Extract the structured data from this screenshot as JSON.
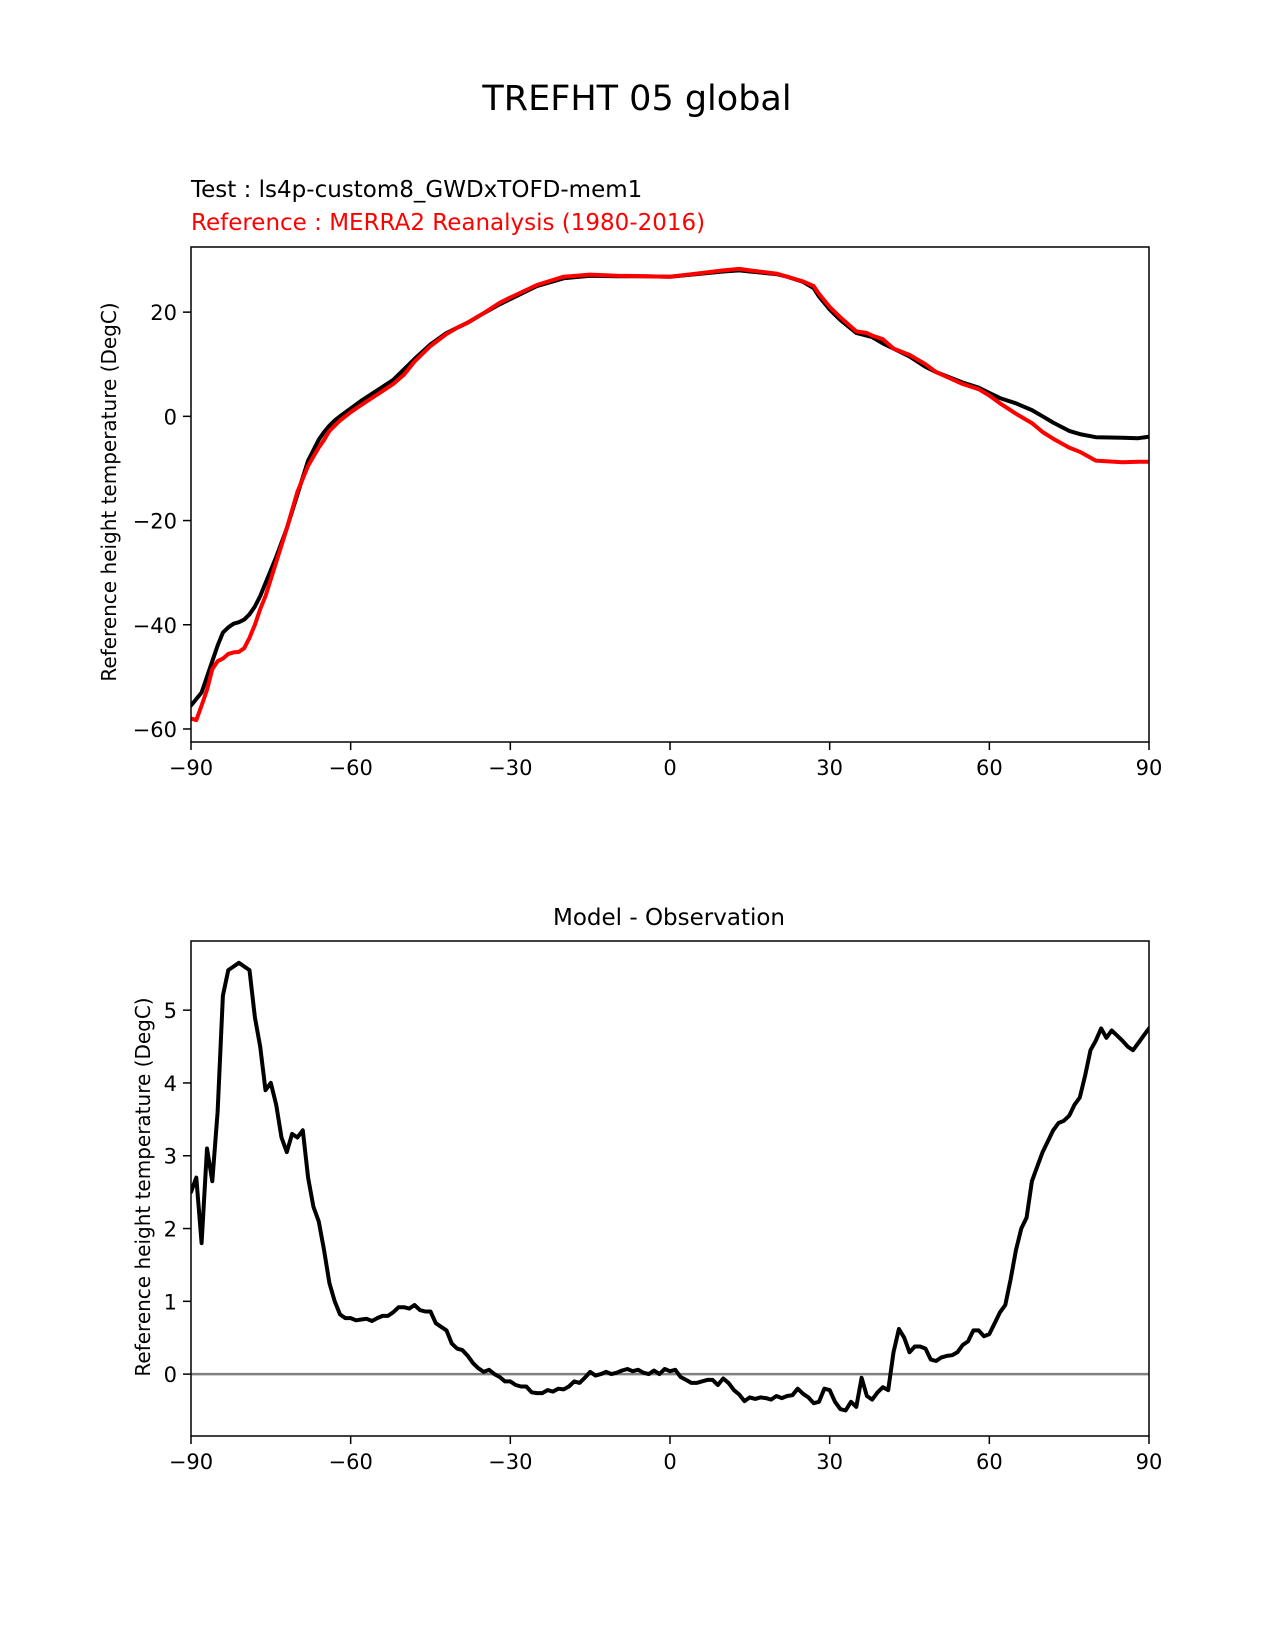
{
  "figure_title": "TREFHT 05 global",
  "chart_data": [
    {
      "type": "line",
      "title_test": "Test : ls4p-custom8_GWDxTOFD-mem1",
      "title_reference": "Reference : MERRA2 Reanalysis (1980-2016)",
      "xlabel": "",
      "ylabel": "Reference height temperature (DegC)",
      "xlim": [
        -90,
        90
      ],
      "ylim": [
        -62.5,
        32.5
      ],
      "xticks": [
        -90,
        -60,
        -30,
        0,
        30,
        60,
        90
      ],
      "xtick_labels": [
        "−90",
        "−60",
        "−30",
        "0",
        "30",
        "60",
        "90"
      ],
      "yticks": [
        20,
        0,
        -20,
        -40,
        -60
      ],
      "ytick_labels": [
        "20",
        "0",
        "−20",
        "−40",
        "−60"
      ],
      "grid": false,
      "series": [
        {
          "name": "Test : ls4p-custom8_GWDxTOFD-mem1",
          "color": "#000000",
          "x": [
            -90,
            -88,
            -86,
            -85,
            -84,
            -83,
            -82,
            -81,
            -80,
            -79,
            -78,
            -77,
            -76,
            -74,
            -72,
            -70,
            -68,
            -66,
            -65,
            -64,
            -63,
            -62,
            -60,
            -58,
            -55,
            -52,
            -50,
            -48,
            -45,
            -42,
            -40,
            -38,
            -35,
            -32,
            -30,
            -25,
            -20,
            -15,
            -10,
            -5,
            0,
            5,
            10,
            13,
            15,
            20,
            22,
            25,
            27,
            28,
            30,
            32,
            35,
            38,
            40,
            42,
            45,
            48,
            50,
            55,
            58,
            60,
            62,
            65,
            68,
            70,
            72,
            75,
            77,
            80,
            85,
            88,
            90
          ],
          "y": [
            -55.5,
            -53,
            -47,
            -44,
            -41.5,
            -40.5,
            -39.8,
            -39.5,
            -39,
            -38,
            -36.5,
            -34.5,
            -32,
            -27,
            -21.5,
            -15,
            -8.5,
            -4.5,
            -3,
            -1.8,
            -0.8,
            0,
            1.5,
            3,
            5,
            7,
            9,
            11,
            13.8,
            16,
            17,
            18,
            19.8,
            21.5,
            22.5,
            25,
            26.5,
            27,
            26.9,
            26.9,
            26.8,
            27.3,
            27.8,
            28,
            27.8,
            27.3,
            26.8,
            25.8,
            24.6,
            23,
            20.5,
            18.5,
            16,
            15.2,
            14,
            13,
            11.5,
            9.5,
            8.5,
            6.5,
            5.5,
            4.5,
            3.5,
            2.5,
            1.2,
            0,
            -1.2,
            -2.8,
            -3.4,
            -4,
            -4.1,
            -4.2,
            -3.9
          ]
        },
        {
          "name": "Reference : MERRA2 Reanalysis (1980-2016)",
          "color": "#ff0000",
          "x": [
            -90,
            -89,
            -88,
            -87,
            -86,
            -85,
            -84,
            -83,
            -82,
            -81,
            -80,
            -79,
            -78,
            -77,
            -76,
            -74,
            -72,
            -70,
            -68,
            -66,
            -65,
            -64,
            -63,
            -62,
            -60,
            -58,
            -55,
            -52,
            -50,
            -48,
            -45,
            -42,
            -40,
            -38,
            -35,
            -32,
            -30,
            -25,
            -20,
            -15,
            -10,
            -5,
            0,
            5,
            10,
            13,
            15,
            20,
            22,
            25,
            27,
            28,
            30,
            32,
            35,
            37,
            38,
            40,
            42,
            45,
            48,
            50,
            55,
            58,
            60,
            62,
            65,
            68,
            70,
            72,
            75,
            77,
            80,
            85,
            88,
            90
          ],
          "y": [
            -58,
            -58.3,
            -55.5,
            -52.5,
            -48.5,
            -47,
            -46.5,
            -45.6,
            -45.3,
            -45.2,
            -44.5,
            -42.5,
            -40,
            -37,
            -34.5,
            -28,
            -21.5,
            -14.5,
            -9.5,
            -6,
            -4.5,
            -2.8,
            -1.8,
            -0.8,
            0.8,
            2.2,
            4.2,
            6.2,
            8,
            10.5,
            13.5,
            15.8,
            17,
            18,
            19.8,
            21.8,
            22.8,
            25.2,
            26.8,
            27.2,
            27,
            26.9,
            26.8,
            27.4,
            28,
            28.3,
            28,
            27.4,
            26.8,
            25.9,
            25,
            23.5,
            21,
            19,
            16.3,
            16,
            15.5,
            14.8,
            13,
            11.8,
            10,
            8.5,
            6.2,
            5.2,
            4,
            2.5,
            0.5,
            -1.3,
            -3,
            -4.3,
            -6,
            -6.8,
            -8.5,
            -8.8,
            -8.7,
            -8.7
          ]
        }
      ]
    },
    {
      "type": "line",
      "title": "Model - Observation",
      "xlabel": "",
      "ylabel": "Reference height temperature (DegC)",
      "xlim": [
        -90,
        90
      ],
      "ylim": [
        -0.85,
        5.95
      ],
      "xticks": [
        -90,
        -60,
        -30,
        0,
        30,
        60,
        90
      ],
      "xtick_labels": [
        "−90",
        "−60",
        "−30",
        "0",
        "30",
        "60",
        "90"
      ],
      "yticks": [
        5,
        4,
        3,
        2,
        1,
        0
      ],
      "ytick_labels": [
        "5",
        "4",
        "3",
        "2",
        "1",
        "0"
      ],
      "grid": false,
      "zero_line": 0,
      "zero_line_color": "#808080",
      "series": [
        {
          "name": "Model - Observation",
          "color": "#000000",
          "x": [
            -90,
            -89,
            -88,
            -87,
            -86,
            -85,
            -84,
            -83,
            -82,
            -81,
            -80,
            -79,
            -78,
            -77,
            -76,
            -75,
            -74,
            -73,
            -72,
            -71,
            -70,
            -69,
            -68,
            -67,
            -66,
            -65,
            -64,
            -63,
            -62,
            -61,
            -60,
            -59,
            -58,
            -57,
            -56,
            -55,
            -54,
            -53,
            -52,
            -51,
            -50,
            -49,
            -48,
            -47,
            -46,
            -45,
            -44,
            -43,
            -42,
            -41,
            -40,
            -39,
            -38,
            -37,
            -36,
            -35,
            -34,
            -33,
            -32,
            -31,
            -30,
            -29,
            -28,
            -27,
            -26,
            -25,
            -24,
            -23,
            -22,
            -21,
            -20,
            -19,
            -18,
            -17,
            -16,
            -15,
            -14,
            -13,
            -12,
            -11,
            -10,
            -9,
            -8,
            -7,
            -6,
            -5,
            -4,
            -3,
            -2,
            -1,
            0,
            1,
            2,
            3,
            4,
            5,
            6,
            7,
            8,
            9,
            10,
            11,
            12,
            13,
            14,
            15,
            16,
            17,
            18,
            19,
            20,
            21,
            22,
            23,
            24,
            25,
            26,
            27,
            28,
            29,
            30,
            31,
            32,
            33,
            34,
            35,
            36,
            37,
            38,
            39,
            40,
            41,
            42,
            43,
            44,
            45,
            46,
            47,
            48,
            49,
            50,
            51,
            52,
            53,
            54,
            55,
            56,
            57,
            58,
            59,
            60,
            61,
            62,
            63,
            64,
            65,
            66,
            67,
            68,
            69,
            70,
            71,
            72,
            73,
            74,
            75,
            76,
            77,
            78,
            79,
            80,
            81,
            82,
            83,
            84,
            85,
            86,
            87,
            88,
            89,
            90
          ],
          "y": [
            2.5,
            2.7,
            1.8,
            3.1,
            2.65,
            3.6,
            5.2,
            5.55,
            5.6,
            5.65,
            5.6,
            5.55,
            4.9,
            4.5,
            3.9,
            4.0,
            3.7,
            3.25,
            3.05,
            3.3,
            3.25,
            3.35,
            2.7,
            2.3,
            2.1,
            1.7,
            1.25,
            1.0,
            0.82,
            0.77,
            0.77,
            0.74,
            0.75,
            0.76,
            0.73,
            0.77,
            0.8,
            0.8,
            0.85,
            0.92,
            0.92,
            0.9,
            0.95,
            0.88,
            0.86,
            0.86,
            0.7,
            0.65,
            0.6,
            0.42,
            0.35,
            0.33,
            0.25,
            0.15,
            0.08,
            0.03,
            0.06,
            0.0,
            -0.04,
            -0.1,
            -0.1,
            -0.15,
            -0.17,
            -0.17,
            -0.25,
            -0.26,
            -0.26,
            -0.22,
            -0.24,
            -0.2,
            -0.21,
            -0.17,
            -0.1,
            -0.12,
            -0.05,
            0.03,
            -0.02,
            0.0,
            0.03,
            0.0,
            0.02,
            0.05,
            0.07,
            0.04,
            0.06,
            0.02,
            0.0,
            0.05,
            0.0,
            0.07,
            0.04,
            0.06,
            -0.04,
            -0.08,
            -0.12,
            -0.12,
            -0.1,
            -0.08,
            -0.08,
            -0.15,
            -0.06,
            -0.12,
            -0.22,
            -0.28,
            -0.37,
            -0.32,
            -0.34,
            -0.32,
            -0.33,
            -0.35,
            -0.3,
            -0.33,
            -0.3,
            -0.29,
            -0.2,
            -0.27,
            -0.32,
            -0.4,
            -0.38,
            -0.2,
            -0.22,
            -0.38,
            -0.48,
            -0.5,
            -0.38,
            -0.45,
            -0.05,
            -0.3,
            -0.35,
            -0.25,
            -0.18,
            -0.22,
            0.3,
            0.62,
            0.5,
            0.3,
            0.38,
            0.38,
            0.35,
            0.2,
            0.18,
            0.23,
            0.25,
            0.26,
            0.3,
            0.4,
            0.45,
            0.6,
            0.6,
            0.52,
            0.55,
            0.7,
            0.85,
            0.95,
            1.3,
            1.7,
            2.0,
            2.15,
            2.65,
            2.85,
            3.05,
            3.2,
            3.35,
            3.45,
            3.48,
            3.55,
            3.7,
            3.8,
            4.1,
            4.45,
            4.58,
            4.75,
            4.62,
            4.72,
            4.65,
            4.58,
            4.5,
            4.45,
            4.55,
            4.65,
            4.75
          ]
        }
      ]
    }
  ]
}
